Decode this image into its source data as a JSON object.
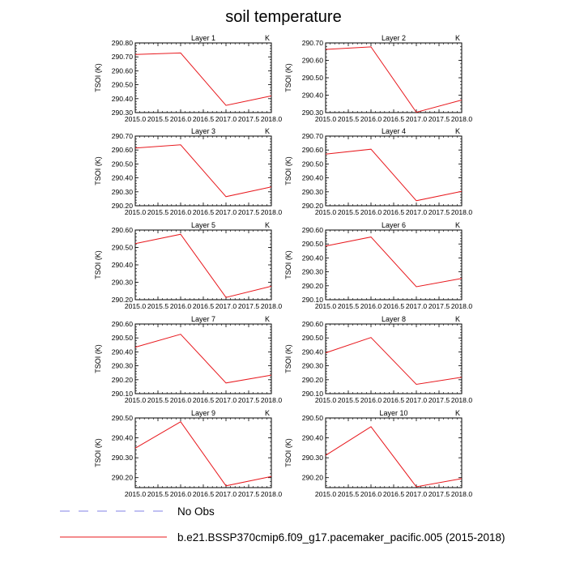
{
  "figure": {
    "title": "soil temperature"
  },
  "chart_data": [
    {
      "type": "line",
      "title": "Layer 1",
      "units": "K",
      "ylabel": "TSOI  (K)",
      "x": [
        2015.0,
        2016.0,
        2017.0,
        2018.0
      ],
      "xlim": [
        2015.0,
        2018.0
      ],
      "xticks": [
        "2015.0",
        "2015.5",
        "2016.0",
        "2016.5",
        "2017.0",
        "2017.5",
        "2018.0"
      ],
      "ylim": [
        290.3,
        290.8
      ],
      "yticks": [
        "290.30",
        "290.40",
        "290.50",
        "290.60",
        "290.70",
        "290.80"
      ],
      "series": [
        {
          "name": "b.e21.BSSP370cmip6.f09_g17.pacemaker_pacific.005 (2015-2018)",
          "values": [
            290.717,
            290.728,
            290.352,
            290.42
          ]
        }
      ]
    },
    {
      "type": "line",
      "title": "Layer 2",
      "units": "K",
      "ylabel": "TSOI  (K)",
      "x": [
        2015.0,
        2016.0,
        2017.0,
        2018.0
      ],
      "xlim": [
        2015.0,
        2018.0
      ],
      "xticks": [
        "2015.0",
        "2015.5",
        "2016.0",
        "2016.5",
        "2017.0",
        "2017.5",
        "2018.0"
      ],
      "ylim": [
        290.3,
        290.7
      ],
      "yticks": [
        "290.30",
        "290.40",
        "290.50",
        "290.60",
        "290.70"
      ],
      "series": [
        {
          "name": "b.e21.BSSP370cmip6.f09_g17.pacemaker_pacific.005 (2015-2018)",
          "values": [
            290.663,
            290.677,
            290.302,
            290.372
          ]
        }
      ]
    },
    {
      "type": "line",
      "title": "Layer 3",
      "units": "K",
      "ylabel": "TSOI  (K)",
      "x": [
        2015.0,
        2016.0,
        2017.0,
        2018.0
      ],
      "xlim": [
        2015.0,
        2018.0
      ],
      "xticks": [
        "2015.0",
        "2015.5",
        "2016.0",
        "2016.5",
        "2017.0",
        "2017.5",
        "2018.0"
      ],
      "ylim": [
        290.2,
        290.7
      ],
      "yticks": [
        "290.20",
        "290.30",
        "290.40",
        "290.50",
        "290.60",
        "290.70"
      ],
      "series": [
        {
          "name": "b.e21.BSSP370cmip6.f09_g17.pacemaker_pacific.005 (2015-2018)",
          "values": [
            290.614,
            290.637,
            290.265,
            290.335
          ]
        }
      ]
    },
    {
      "type": "line",
      "title": "Layer 4",
      "units": "K",
      "ylabel": "TSOI  (K)",
      "x": [
        2015.0,
        2016.0,
        2017.0,
        2018.0
      ],
      "xlim": [
        2015.0,
        2018.0
      ],
      "xticks": [
        "2015.0",
        "2015.5",
        "2016.0",
        "2016.5",
        "2017.0",
        "2017.5",
        "2018.0"
      ],
      "ylim": [
        290.2,
        290.7
      ],
      "yticks": [
        "290.20",
        "290.30",
        "290.40",
        "290.50",
        "290.60",
        "290.70"
      ],
      "series": [
        {
          "name": "b.e21.BSSP370cmip6.f09_g17.pacemaker_pacific.005 (2015-2018)",
          "values": [
            290.571,
            290.606,
            290.236,
            290.303
          ]
        }
      ]
    },
    {
      "type": "line",
      "title": "Layer 5",
      "units": "K",
      "ylabel": "TSOI  (K)",
      "x": [
        2015.0,
        2016.0,
        2017.0,
        2018.0
      ],
      "xlim": [
        2015.0,
        2018.0
      ],
      "xticks": [
        "2015.0",
        "2015.5",
        "2016.0",
        "2016.5",
        "2017.0",
        "2017.5",
        "2018.0"
      ],
      "ylim": [
        290.2,
        290.6
      ],
      "yticks": [
        "290.20",
        "290.30",
        "290.40",
        "290.50",
        "290.60"
      ],
      "series": [
        {
          "name": "b.e21.BSSP370cmip6.f09_g17.pacemaker_pacific.005 (2015-2018)",
          "values": [
            290.522,
            290.576,
            290.213,
            290.277
          ]
        }
      ]
    },
    {
      "type": "line",
      "title": "Layer 6",
      "units": "K",
      "ylabel": "TSOI  (K)",
      "x": [
        2015.0,
        2016.0,
        2017.0,
        2018.0
      ],
      "xlim": [
        2015.0,
        2018.0
      ],
      "xticks": [
        "2015.0",
        "2015.5",
        "2016.0",
        "2016.5",
        "2017.0",
        "2017.5",
        "2018.0"
      ],
      "ylim": [
        290.1,
        290.6
      ],
      "yticks": [
        "290.10",
        "290.20",
        "290.30",
        "290.40",
        "290.50",
        "290.60"
      ],
      "series": [
        {
          "name": "b.e21.BSSP370cmip6.f09_g17.pacemaker_pacific.005 (2015-2018)",
          "values": [
            290.485,
            290.55,
            290.193,
            290.253
          ]
        }
      ]
    },
    {
      "type": "line",
      "title": "Layer 7",
      "units": "K",
      "ylabel": "TSOI  (K)",
      "x": [
        2015.0,
        2016.0,
        2017.0,
        2018.0
      ],
      "xlim": [
        2015.0,
        2018.0
      ],
      "xticks": [
        "2015.0",
        "2015.5",
        "2016.0",
        "2016.5",
        "2017.0",
        "2017.5",
        "2018.0"
      ],
      "ylim": [
        290.1,
        290.6
      ],
      "yticks": [
        "290.10",
        "290.20",
        "290.30",
        "290.40",
        "290.50",
        "290.60"
      ],
      "series": [
        {
          "name": "b.e21.BSSP370cmip6.f09_g17.pacemaker_pacific.005 (2015-2018)",
          "values": [
            290.434,
            290.526,
            290.177,
            290.233
          ]
        }
      ]
    },
    {
      "type": "line",
      "title": "Layer 8",
      "units": "K",
      "ylabel": "TSOI  (K)",
      "x": [
        2015.0,
        2016.0,
        2017.0,
        2018.0
      ],
      "xlim": [
        2015.0,
        2018.0
      ],
      "xticks": [
        "2015.0",
        "2015.5",
        "2016.0",
        "2016.5",
        "2017.0",
        "2017.5",
        "2018.0"
      ],
      "ylim": [
        290.1,
        290.6
      ],
      "yticks": [
        "290.10",
        "290.20",
        "290.30",
        "290.40",
        "290.50",
        "290.60"
      ],
      "series": [
        {
          "name": "b.e21.BSSP370cmip6.f09_g17.pacemaker_pacific.005 (2015-2018)",
          "values": [
            290.393,
            290.503,
            290.167,
            290.218
          ]
        }
      ]
    },
    {
      "type": "line",
      "title": "Layer 9",
      "units": "K",
      "ylabel": "TSOI  (K)",
      "x": [
        2015.0,
        2016.0,
        2017.0,
        2018.0
      ],
      "xlim": [
        2015.0,
        2018.0
      ],
      "xticks": [
        "2015.0",
        "2015.5",
        "2016.0",
        "2016.5",
        "2017.0",
        "2017.5",
        "2018.0"
      ],
      "ylim": [
        290.15,
        290.5
      ],
      "yticks": [
        "290.20",
        "290.30",
        "290.40",
        "290.50"
      ],
      "series": [
        {
          "name": "b.e21.BSSP370cmip6.f09_g17.pacemaker_pacific.005 (2015-2018)",
          "values": [
            290.348,
            290.481,
            290.159,
            290.206
          ]
        }
      ]
    },
    {
      "type": "line",
      "title": "Layer 10",
      "units": "K",
      "ylabel": "TSOI  (K)",
      "x": [
        2015.0,
        2016.0,
        2017.0,
        2018.0
      ],
      "xlim": [
        2015.0,
        2018.0
      ],
      "xticks": [
        "2015.0",
        "2015.5",
        "2016.0",
        "2016.5",
        "2017.0",
        "2017.5",
        "2018.0"
      ],
      "ylim": [
        290.15,
        290.5
      ],
      "yticks": [
        "290.20",
        "290.30",
        "290.40",
        "290.50"
      ],
      "series": [
        {
          "name": "b.e21.BSSP370cmip6.f09_g17.pacemaker_pacific.005 (2015-2018)",
          "values": [
            290.312,
            290.456,
            290.154,
            290.195
          ]
        }
      ]
    }
  ],
  "legend": {
    "entries": [
      {
        "label": "No Obs",
        "style": "dashed",
        "color": "#8080e6"
      },
      {
        "label": "b.e21.BSSP370cmip6.f09_g17.pacemaker_pacific.005 (2015-2018)",
        "style": "solid",
        "color": "#e8191e"
      }
    ]
  },
  "colors": {
    "series_line": "#e8191e",
    "axis": "#000000",
    "no_obs_line": "#8080e6"
  }
}
